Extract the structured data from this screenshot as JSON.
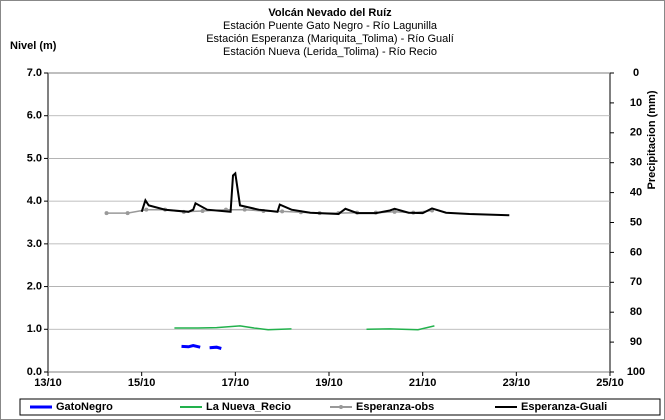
{
  "chart_data": {
    "type": "line",
    "title": "Volcán Nevado del Ruíz",
    "subtitle": [
      "Estación Puente Gato Negro - Río Lagunilla",
      "Estación Esperanza (Mariquita_Tolima) - Río Gualí",
      "Estación Nueva (Lerida_Tolima) - Río Recio"
    ],
    "ylabel": "Nivel (m)",
    "y2label": "Precipitacion (mm)",
    "xlim": [
      13,
      25
    ],
    "xticks": [
      {
        "value": 13,
        "label": "13/10"
      },
      {
        "value": 15,
        "label": "15/10"
      },
      {
        "value": 17,
        "label": "17/10"
      },
      {
        "value": 19,
        "label": "19/10"
      },
      {
        "value": 21,
        "label": "21/10"
      },
      {
        "value": 23,
        "label": "23/10"
      },
      {
        "value": 25,
        "label": "25/10"
      }
    ],
    "ylim": [
      0,
      7
    ],
    "yticks": [
      {
        "value": 0,
        "label": "0.0"
      },
      {
        "value": 1,
        "label": "1.0"
      },
      {
        "value": 2,
        "label": "2.0"
      },
      {
        "value": 3,
        "label": "3.0"
      },
      {
        "value": 4,
        "label": "4.0"
      },
      {
        "value": 5,
        "label": "5.0"
      },
      {
        "value": 6,
        "label": "6.0"
      },
      {
        "value": 7,
        "label": "7.0"
      }
    ],
    "y2lim": [
      0,
      100
    ],
    "y2_inverted": true,
    "y2ticks": [
      0,
      10,
      20,
      30,
      40,
      50,
      60,
      70,
      80,
      90,
      100
    ],
    "grid": true,
    "legend": "bottom",
    "series": [
      {
        "name": "GatoNegro",
        "color": "#0000ff",
        "width": 3,
        "x": [
          15.85,
          16.0,
          16.1,
          16.25,
          16.3,
          16.45,
          16.6,
          16.7
        ],
        "values": [
          0.6,
          0.59,
          0.62,
          0.58,
          null,
          0.57,
          0.58,
          0.55
        ]
      },
      {
        "name": "La Nueva_Recio",
        "color": "#22b14c",
        "width": 1.5,
        "x": [
          15.7,
          16.2,
          16.6,
          17.1,
          17.4,
          17.7,
          18.2,
          18.3,
          19.8,
          20.3,
          20.9,
          21.25
        ],
        "values": [
          1.03,
          1.03,
          1.04,
          1.08,
          1.03,
          0.99,
          1.01,
          null,
          1.0,
          1.01,
          0.99,
          1.08
        ]
      },
      {
        "name": "Esperanza-obs",
        "color": "#999999",
        "width": 1.5,
        "markers": true,
        "x": [
          14.25,
          14.7,
          15.1,
          15.5,
          15.9,
          16.3,
          16.8,
          17.2,
          17.6,
          18.0,
          18.4,
          18.8,
          19.2,
          19.6,
          20.0,
          20.4,
          20.8,
          21.2
        ],
        "values": [
          3.72,
          3.72,
          3.8,
          3.8,
          3.75,
          3.77,
          3.8,
          3.8,
          3.77,
          3.76,
          3.74,
          3.72,
          3.72,
          3.73,
          3.73,
          3.75,
          3.73,
          3.78
        ]
      },
      {
        "name": "Esperanza-Guali",
        "color": "#000000",
        "width": 2,
        "x": [
          15.0,
          15.08,
          15.15,
          15.5,
          16.0,
          16.1,
          16.15,
          16.4,
          16.9,
          16.95,
          17.0,
          17.1,
          17.5,
          17.9,
          17.95,
          18.2,
          18.6,
          19.2,
          19.35,
          19.6,
          20.0,
          20.3,
          20.4,
          20.7,
          21.0,
          21.2,
          21.5,
          22.0,
          22.85
        ],
        "values": [
          3.75,
          4.02,
          3.9,
          3.8,
          3.75,
          3.8,
          3.95,
          3.8,
          3.75,
          4.6,
          4.65,
          3.9,
          3.8,
          3.75,
          3.92,
          3.8,
          3.73,
          3.7,
          3.82,
          3.72,
          3.72,
          3.78,
          3.82,
          3.73,
          3.72,
          3.83,
          3.73,
          3.7,
          3.67
        ]
      }
    ]
  }
}
